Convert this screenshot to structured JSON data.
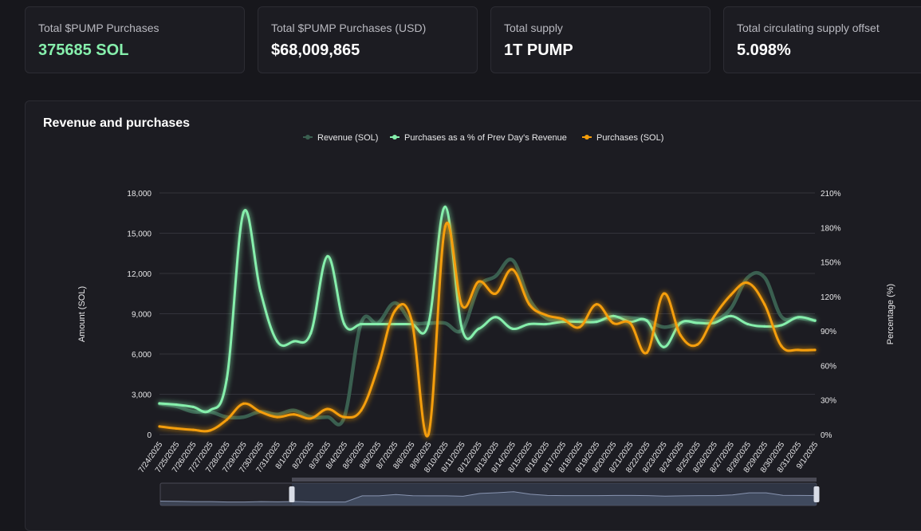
{
  "stats": [
    {
      "label": "Total $PUMP Purchases",
      "value": "375685 SOL"
    },
    {
      "label": "Total $PUMP Purchases (USD)",
      "value": "$68,009,865"
    },
    {
      "label": "Total supply",
      "value": "1T PUMP"
    },
    {
      "label": "Total circulating supply offset",
      "value": "5.098%"
    }
  ],
  "panel": {
    "title": "Revenue and purchases"
  },
  "colors": {
    "revenue": "#3a5f50",
    "pct": "#86efac",
    "purchases": "#f59e0b",
    "grid": "#33333b"
  },
  "chart_data": {
    "type": "line",
    "ylabel": "Amount (SOL)",
    "y2label": "Percentage (%)",
    "ylim": [
      0,
      18000
    ],
    "y2lim": [
      0,
      210
    ],
    "yticks": [
      "0",
      "3,000",
      "6,000",
      "9,000",
      "12,000",
      "15,000",
      "18,000"
    ],
    "y2ticks": [
      "0%",
      "30%",
      "60%",
      "90%",
      "120%",
      "150%",
      "180%",
      "210%"
    ],
    "legend_position": "top-center",
    "x": [
      "7/24/2025",
      "7/25/2025",
      "7/26/2025",
      "7/27/2025",
      "7/28/2025",
      "7/29/2025",
      "7/30/2025",
      "7/31/2025",
      "8/1/2025",
      "8/2/2025",
      "8/3/2025",
      "8/4/2025",
      "8/5/2025",
      "8/6/2025",
      "8/7/2025",
      "8/8/2025",
      "8/9/2025",
      "8/10/2025",
      "8/11/2025",
      "8/12/2025",
      "8/13/2025",
      "8/14/2025",
      "8/15/2025",
      "8/16/2025",
      "8/17/2025",
      "8/18/2025",
      "8/19/2025",
      "8/20/2025",
      "8/21/2025",
      "8/22/2025",
      "8/23/2025",
      "8/24/2025",
      "8/25/2025",
      "8/26/2025",
      "8/27/2025",
      "8/28/2025",
      "8/29/2025",
      "8/30/2025",
      "8/31/2025",
      "9/1/2025"
    ],
    "series": [
      {
        "name": "Revenue (SOL)",
        "axis": "left",
        "values": [
          2300,
          2100,
          1700,
          1700,
          1300,
          1300,
          1700,
          1500,
          1800,
          1300,
          1300,
          1300,
          8300,
          8300,
          9800,
          8400,
          8300,
          8300,
          7800,
          11000,
          11800,
          13000,
          10100,
          8700,
          8500,
          8500,
          8500,
          8700,
          8700,
          8500,
          8000,
          8300,
          8500,
          8500,
          9400,
          11700,
          11700,
          8800,
          8700,
          8500
        ]
      },
      {
        "name": "Purchases as a % of Prev Day's Revenue",
        "axis": "right",
        "values": [
          27,
          26,
          24,
          21,
          48,
          193,
          125,
          81,
          81,
          88,
          155,
          96,
          96,
          96,
          96,
          96,
          96,
          198,
          92,
          92,
          102,
          92,
          96,
          96,
          98,
          98,
          98,
          103,
          98,
          99,
          76,
          97,
          97,
          97,
          103,
          96,
          94,
          95,
          102,
          99
        ]
      },
      {
        "name": "Purchases (SOL)",
        "axis": "left",
        "values": [
          600,
          450,
          350,
          300,
          1100,
          2300,
          1700,
          1300,
          1500,
          1200,
          1900,
          1300,
          1800,
          5000,
          9200,
          8500,
          0,
          15500,
          9600,
          11400,
          10500,
          12300,
          9700,
          8900,
          8600,
          8000,
          9700,
          8300,
          8300,
          6100,
          10500,
          7400,
          6700,
          8800,
          10400,
          11300,
          9700,
          6600,
          6300,
          6300
        ]
      }
    ]
  }
}
